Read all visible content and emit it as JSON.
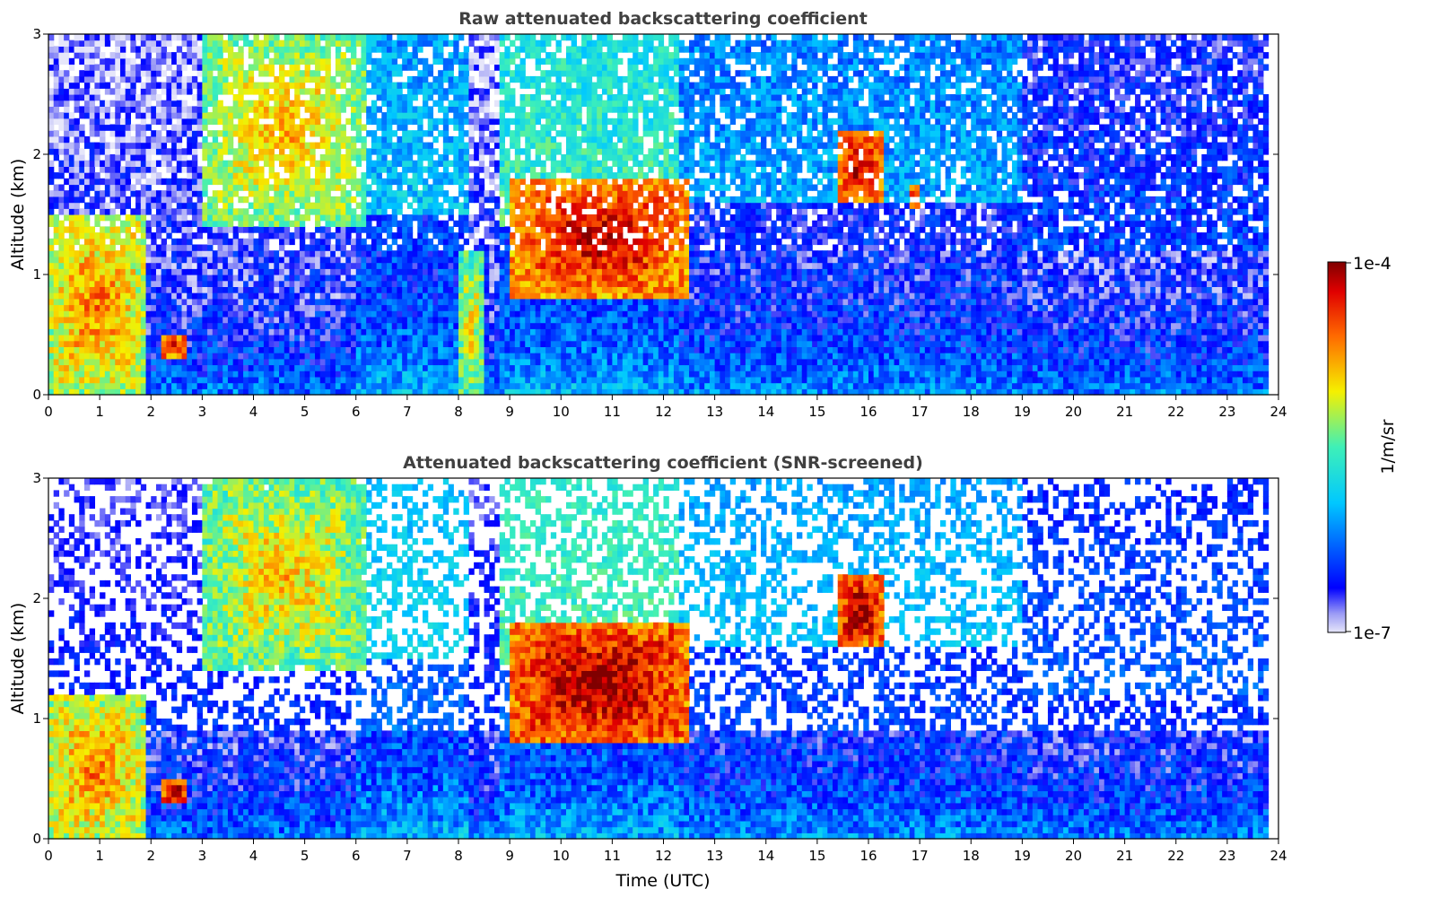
{
  "chart_data": [
    {
      "type": "heatmap",
      "title": "Raw attenuated backscattering coefficient",
      "xlabel": "",
      "ylabel": "Altitude (km)",
      "xlim": [
        0,
        24
      ],
      "ylim": [
        0,
        3
      ],
      "x_ticks": [
        "0",
        "1",
        "2",
        "3",
        "4",
        "5",
        "6",
        "7",
        "8",
        "9",
        "10",
        "11",
        "12",
        "13",
        "14",
        "15",
        "16",
        "17",
        "18",
        "19",
        "20",
        "21",
        "22",
        "23",
        "24"
      ],
      "y_ticks": [
        "0",
        "1",
        "2",
        "3"
      ],
      "features": [
        {
          "t_range": [
            0,
            1.9
          ],
          "alt_range": [
            0,
            1.5
          ],
          "level": 0.8,
          "desc": "aerosol layer"
        },
        {
          "t_range": [
            2.2,
            2.7
          ],
          "alt_range": [
            0.3,
            0.5
          ],
          "level": 0.95,
          "desc": "cloud"
        },
        {
          "t_range": [
            3,
            6.2
          ],
          "alt_range": [
            1.4,
            3
          ],
          "level": 0.72,
          "desc": "aerosol plume"
        },
        {
          "t_range": [
            8,
            8.5
          ],
          "alt_range": [
            0,
            1.2
          ],
          "level": 0.7,
          "desc": "cloud column"
        },
        {
          "t_range": [
            9,
            12.5
          ],
          "alt_range": [
            0.8,
            1.8
          ],
          "level": 0.95,
          "desc": "cloud layer"
        },
        {
          "t_range": [
            15.4,
            16.3
          ],
          "alt_range": [
            1.6,
            2.2
          ],
          "level": 0.95,
          "desc": "cloud"
        },
        {
          "t_range": [
            16.8,
            17.0
          ],
          "alt_range": [
            1.55,
            1.75
          ],
          "level": 0.95,
          "desc": "cloud"
        }
      ]
    },
    {
      "type": "heatmap",
      "title": "Attenuated backscattering coefficient (SNR-screened)",
      "xlabel": "Time (UTC)",
      "ylabel": "Altitude (km)",
      "xlim": [
        0,
        24
      ],
      "ylim": [
        0,
        3
      ],
      "x_ticks": [
        "0",
        "1",
        "2",
        "3",
        "4",
        "5",
        "6",
        "7",
        "8",
        "9",
        "10",
        "11",
        "12",
        "13",
        "14",
        "15",
        "16",
        "17",
        "18",
        "19",
        "20",
        "21",
        "22",
        "23",
        "24"
      ],
      "y_ticks": [
        "0",
        "1",
        "2",
        "3"
      ],
      "features": [
        {
          "t_range": [
            0,
            1.9
          ],
          "alt_range": [
            0,
            1.2
          ],
          "level": 0.8,
          "desc": "aerosol layer"
        },
        {
          "t_range": [
            2.2,
            2.7
          ],
          "alt_range": [
            0.3,
            0.5
          ],
          "level": 1.0,
          "desc": "cloud"
        },
        {
          "t_range": [
            3,
            6.2
          ],
          "alt_range": [
            1.4,
            3
          ],
          "level": 0.72,
          "desc": "aerosol plume"
        },
        {
          "t_range": [
            9,
            12.5
          ],
          "alt_range": [
            0.8,
            1.8
          ],
          "level": 1.0,
          "desc": "cloud layer"
        },
        {
          "t_range": [
            15.4,
            16.3
          ],
          "alt_range": [
            1.6,
            2.2
          ],
          "level": 1.0,
          "desc": "cloud"
        },
        {
          "t_range": [
            19.2,
            23.8
          ],
          "alt_range": [
            0,
            0.3
          ],
          "level": 0.1,
          "desc": "boundary layer"
        }
      ]
    }
  ],
  "colorbar": {
    "label": "1/m/sr",
    "max_label": "1e-4",
    "min_label": "1e-7",
    "colormap": "jet",
    "range": [
      1e-07,
      0.0001
    ]
  }
}
